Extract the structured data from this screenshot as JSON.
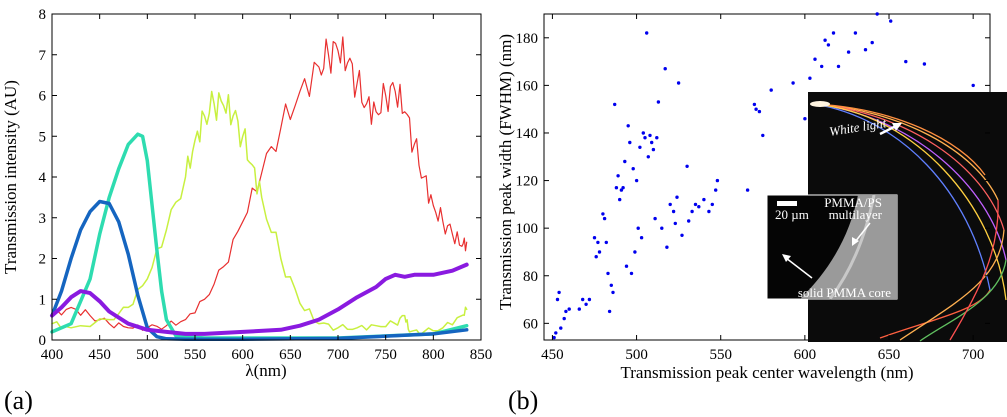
{
  "panels": {
    "a_label": "(a)",
    "b_label": "(b)"
  },
  "inset": {
    "white_light": "White light",
    "scale_bar": "20 µm",
    "multilayer_label_1": "PMMA/PS",
    "multilayer_label_2": "multilayer",
    "core_label": "solid PMMA core"
  },
  "chart_data": [
    {
      "type": "line",
      "xlabel": "λ(nm)",
      "ylabel": "Transmission intensity (AU)",
      "xlim": [
        400,
        850
      ],
      "ylim": [
        0,
        8
      ],
      "xticks": [
        400,
        450,
        500,
        550,
        600,
        650,
        700,
        750,
        800,
        850
      ],
      "yticks": [
        0,
        1,
        2,
        3,
        4,
        5,
        6,
        7,
        8
      ],
      "grid": false,
      "series": [
        {
          "color": "#1565c0",
          "width": 3.5,
          "x": [
            400,
            410,
            420,
            430,
            440,
            450,
            460,
            470,
            480,
            490,
            500,
            510,
            520,
            540,
            600,
            700,
            800,
            835
          ],
          "y": [
            0.6,
            1.2,
            2.0,
            2.7,
            3.15,
            3.4,
            3.35,
            2.9,
            2.1,
            1.1,
            0.3,
            0.08,
            0.03,
            0.02,
            0.02,
            0.04,
            0.15,
            0.25
          ]
        },
        {
          "color": "#2edcb0",
          "width": 3.5,
          "x": [
            400,
            420,
            440,
            450,
            460,
            470,
            480,
            490,
            495,
            500,
            505,
            510,
            515,
            520,
            530,
            560,
            700,
            800,
            835
          ],
          "y": [
            0.2,
            0.4,
            1.5,
            2.6,
            3.5,
            4.2,
            4.8,
            5.05,
            5.0,
            4.4,
            3.3,
            2.2,
            1.2,
            0.5,
            0.1,
            0.05,
            0.05,
            0.15,
            0.35
          ]
        },
        {
          "color": "#c8f040",
          "width": 1.5,
          "x": [
            400,
            420,
            460,
            480,
            500,
            520,
            540,
            550,
            560,
            570,
            580,
            590,
            600,
            610,
            620,
            640,
            660,
            680,
            700,
            720,
            740,
            760,
            770,
            775,
            790,
            810,
            830,
            835
          ],
          "y": [
            0.4,
            0.3,
            0.5,
            0.8,
            1.5,
            2.7,
            4.0,
            4.9,
            5.5,
            5.8,
            5.75,
            5.5,
            5.0,
            4.3,
            3.5,
            2.0,
            0.9,
            0.4,
            0.3,
            0.3,
            0.35,
            0.4,
            0.6,
            0.2,
            0.2,
            0.3,
            0.6,
            0.75
          ]
        },
        {
          "color": "#e83030",
          "width": 1.2,
          "x": [
            400,
            420,
            440,
            460,
            480,
            500,
            520,
            540,
            560,
            580,
            600,
            620,
            640,
            660,
            680,
            690,
            700,
            710,
            720,
            730,
            740,
            750,
            760,
            770,
            780,
            790,
            800,
            810,
            820,
            830,
            835
          ],
          "y": [
            0.6,
            0.8,
            0.6,
            0.4,
            0.3,
            0.3,
            0.35,
            0.5,
            1.0,
            1.8,
            2.9,
            4.1,
            5.2,
            6.1,
            6.7,
            7.0,
            7.1,
            6.8,
            6.3,
            5.8,
            5.6,
            6.0,
            6.1,
            5.6,
            4.8,
            4.0,
            3.3,
            2.9,
            2.6,
            2.3,
            2.4
          ]
        },
        {
          "color": "#8a1ae0",
          "width": 4,
          "x": [
            400,
            410,
            420,
            430,
            440,
            450,
            460,
            480,
            500,
            520,
            540,
            560,
            600,
            640,
            660,
            680,
            700,
            720,
            740,
            750,
            760,
            770,
            780,
            800,
            820,
            835
          ],
          "y": [
            0.6,
            0.8,
            1.05,
            1.2,
            1.15,
            0.95,
            0.7,
            0.4,
            0.25,
            0.2,
            0.15,
            0.15,
            0.2,
            0.25,
            0.35,
            0.5,
            0.75,
            1.05,
            1.3,
            1.5,
            1.6,
            1.55,
            1.6,
            1.6,
            1.7,
            1.85
          ]
        }
      ]
    },
    {
      "type": "scatter",
      "xlabel": "Transmission peak center wavelength (nm)",
      "ylabel": "Transmission peak width (FWHM) (nm)",
      "xlim": [
        445,
        710
      ],
      "ylim": [
        53,
        190
      ],
      "xticks": [
        450,
        500,
        550,
        600,
        650,
        700
      ],
      "yticks": [
        60,
        80,
        100,
        120,
        140,
        160,
        180
      ],
      "grid": false,
      "series": [
        {
          "color": "#0000ee",
          "points": [
            [
              451,
              54
            ],
            [
              452,
              56
            ],
            [
              453,
              70
            ],
            [
              454,
              73
            ],
            [
              455,
              58
            ],
            [
              457,
              62
            ],
            [
              458,
              65
            ],
            [
              460,
              66
            ],
            [
              466,
              66
            ],
            [
              468,
              70
            ],
            [
              470,
              68
            ],
            [
              472,
              70
            ],
            [
              475,
              96
            ],
            [
              476,
              88
            ],
            [
              477,
              94
            ],
            [
              478,
              90
            ],
            [
              480,
              106
            ],
            [
              481,
              104
            ],
            [
              482,
              94
            ],
            [
              483,
              81
            ],
            [
              484,
              65
            ],
            [
              485,
              76
            ],
            [
              486,
              73
            ],
            [
              487,
              152
            ],
            [
              488,
              117
            ],
            [
              489,
              122
            ],
            [
              490,
              112
            ],
            [
              491,
              116
            ],
            [
              492,
              117
            ],
            [
              493,
              128
            ],
            [
              494,
              84
            ],
            [
              495,
              143
            ],
            [
              496,
              136
            ],
            [
              497,
              81
            ],
            [
              498,
              125
            ],
            [
              499,
              90
            ],
            [
              500,
              120
            ],
            [
              501,
              100
            ],
            [
              502,
              134
            ],
            [
              503,
              96
            ],
            [
              504,
              140
            ],
            [
              505,
              138
            ],
            [
              506,
              182
            ],
            [
              507,
              130
            ],
            [
              508,
              139
            ],
            [
              509,
              136
            ],
            [
              510,
              133
            ],
            [
              511,
              104
            ],
            [
              512,
              138
            ],
            [
              513,
              153
            ],
            [
              515,
              100
            ],
            [
              517,
              167
            ],
            [
              518,
              92
            ],
            [
              520,
              110
            ],
            [
              522,
              107
            ],
            [
              523,
              102
            ],
            [
              524,
              113
            ],
            [
              525,
              161
            ],
            [
              527,
              97
            ],
            [
              530,
              126
            ],
            [
              531,
              103
            ],
            [
              533,
              107
            ],
            [
              535,
              110
            ],
            [
              537,
              109
            ],
            [
              540,
              112
            ],
            [
              543,
              107
            ],
            [
              545,
              110
            ],
            [
              547,
              116
            ],
            [
              548,
              120
            ],
            [
              566,
              116
            ],
            [
              570,
              152
            ],
            [
              571,
              150
            ],
            [
              573,
              149
            ],
            [
              575,
              139
            ],
            [
              580,
              158
            ],
            [
              593,
              161
            ],
            [
              600,
              146
            ],
            [
              603,
              163
            ],
            [
              606,
              171
            ],
            [
              610,
              168
            ],
            [
              612,
              179
            ],
            [
              614,
              177
            ],
            [
              617,
              182
            ],
            [
              620,
              168
            ],
            [
              626,
              174
            ],
            [
              630,
              182
            ],
            [
              636,
              175
            ],
            [
              640,
              178
            ],
            [
              643,
              190
            ],
            [
              651,
              187
            ],
            [
              660,
              170
            ],
            [
              671,
              169
            ],
            [
              700,
              160
            ],
            [
              702,
              154
            ]
          ]
        }
      ]
    }
  ]
}
